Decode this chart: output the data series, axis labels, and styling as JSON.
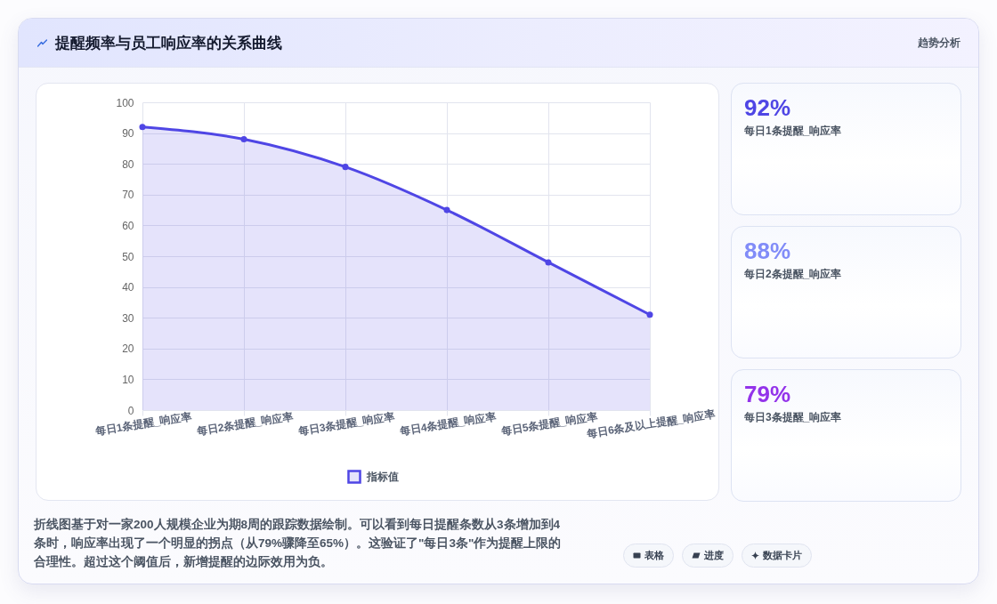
{
  "chart_data": [
    {
      "type": "area",
      "title": "提醒频率与员工响应率的关系曲线",
      "categories": [
        "每日1条提醒_响应率",
        "每日2条提醒_响应率",
        "每日3条提醒_响应率",
        "每日4条提醒_响应率",
        "每日5条提醒_响应率",
        "每日6条及以上提醒_响应率"
      ],
      "series": [
        {
          "name": "指标值",
          "color": "#4f46e5",
          "values": [
            92,
            88,
            79,
            65,
            48,
            31
          ]
        }
      ],
      "ylim": [
        0,
        100
      ],
      "yticks": [
        0,
        10,
        20,
        30,
        40,
        50,
        60,
        70,
        80,
        90,
        100
      ],
      "grid": true,
      "legend": "bottom",
      "marker": "circle",
      "annotations": [
        "折线图基于对一家200人规模企业为期8周的跟踪数据绘制。可以看到每日提醒条数从3条增加到4条时，响应率出现了一个明显的拐点（从79%骤降至65%）。这验证了\"每日3条\"作为提醒上限的合理性。超过这个阈值后，新增提醒的边际效用为负。",
        "表格",
        "进度",
        "数据卡片"
      ]
    },
    {
      "type": "other",
      "title": "趋势分析",
      "annotations": [
        "92%",
        "每日1条提醒_响应率"
      ],
      "color": "#4f46e5"
    },
    {
      "type": "other",
      "annotations": [
        "88%",
        "每日2条提醒_响应率"
      ],
      "color": "#818cf8"
    },
    {
      "type": "other",
      "annotations": [
        "79%",
        "每日3条提醒_响应率"
      ],
      "color": "#9333ea"
    }
  ]
}
